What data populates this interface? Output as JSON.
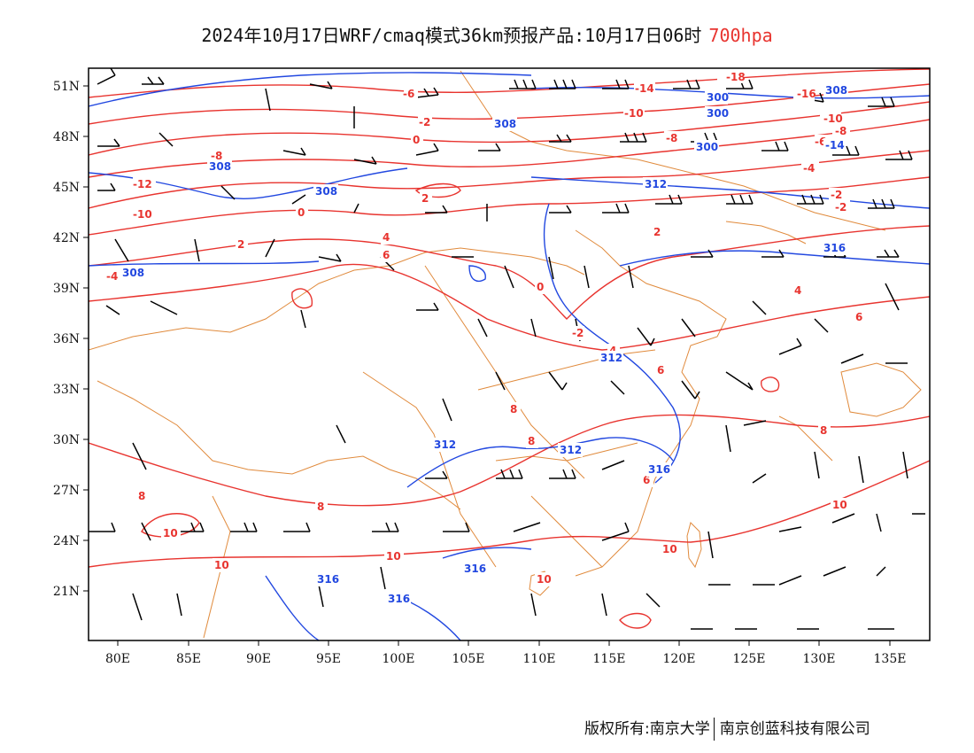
{
  "title": {
    "main": "2024年10月17日WRF/cmaq模式36km预报产品:10月17日06时",
    "level": "700hpa"
  },
  "footer": {
    "copyright": "版权所有:南京大学",
    "company": "南京创蓝科技有限公司"
  },
  "colors": {
    "temperature": "#e8342f",
    "height": "#2248e0",
    "border": "#e08a3c",
    "wind": "#000000"
  },
  "axes": {
    "x_ticks": [
      "80E",
      "85E",
      "90E",
      "95E",
      "100E",
      "105E",
      "110E",
      "115E",
      "120E",
      "125E",
      "130E",
      "135E"
    ],
    "y_ticks": [
      "51N",
      "48N",
      "45N",
      "42N",
      "39N",
      "36N",
      "33N",
      "30N",
      "27N",
      "24N",
      "21N"
    ]
  },
  "labels": {
    "temperature": [
      "-18",
      "-16",
      "-14",
      "-12",
      "-10",
      "-10",
      "-8",
      "-8",
      "-6",
      "-6",
      "-4",
      "-4",
      "-2",
      "-2",
      "-2",
      "0",
      "0",
      "2",
      "2",
      "2",
      "4",
      "4",
      "6",
      "6",
      "6",
      "8",
      "8",
      "8",
      "8",
      "8",
      "10",
      "10",
      "10",
      "10",
      "10",
      "-12",
      "-10",
      "-8",
      "-2",
      "2",
      "4",
      "6"
    ],
    "height": [
      "300",
      "300",
      "300",
      "308",
      "308",
      "308",
      "308",
      "312",
      "312",
      "312",
      "312",
      "316",
      "316",
      "316",
      "316",
      "316",
      "308",
      "-14"
    ]
  }
}
